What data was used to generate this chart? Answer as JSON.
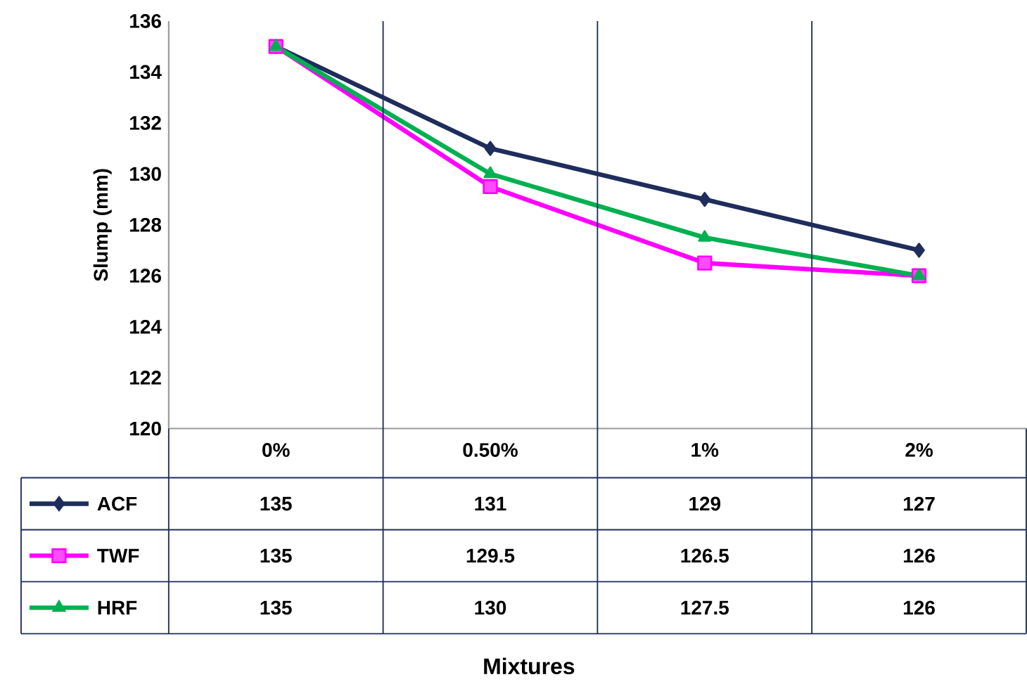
{
  "chart_data": {
    "type": "line",
    "annotations": [
      "Mixtures"
    ],
    "ylabel": "Slump (mm)",
    "categories": [
      "0%",
      "0.50%",
      "1%",
      "2%"
    ],
    "series": [
      {
        "name": "ACF",
        "color": "#1f2d5c",
        "marker": "diamond",
        "values": [
          135,
          131,
          129,
          127
        ]
      },
      {
        "name": "TWF",
        "color": "#ff00ff",
        "marker": "square",
        "values": [
          135,
          129.5,
          126.5,
          126
        ]
      },
      {
        "name": "HRF",
        "color": "#00b050",
        "marker": "triangle",
        "values": [
          135,
          130,
          127.5,
          126
        ]
      }
    ],
    "ylim": [
      120,
      136
    ],
    "yticks": [
      120,
      122,
      124,
      126,
      128,
      130,
      132,
      134,
      136
    ],
    "data_labels": true,
    "legend": "bottom",
    "line_style": "solid"
  }
}
